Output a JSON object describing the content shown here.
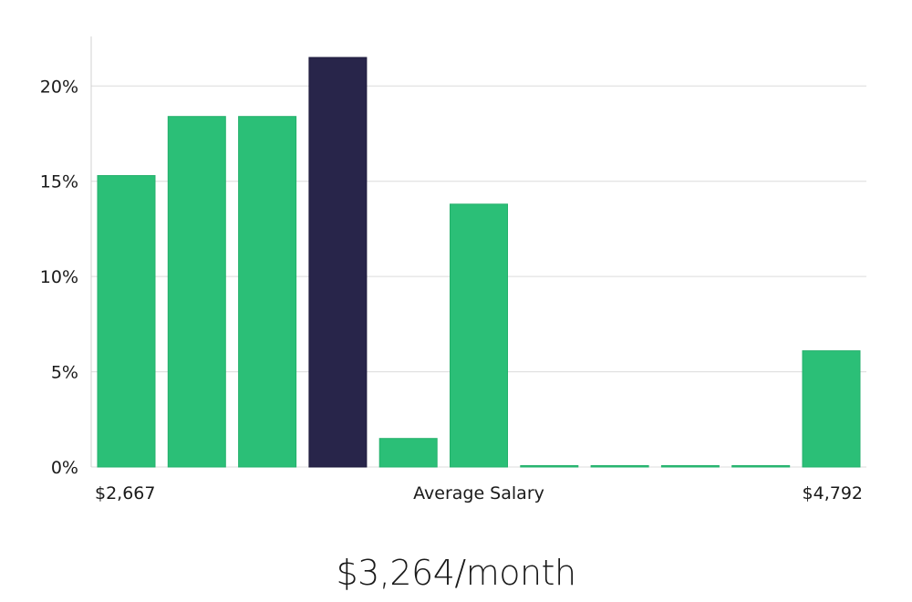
{
  "chart_data": {
    "type": "bar",
    "values": [
      15.3,
      18.4,
      18.4,
      21.5,
      1.5,
      13.8,
      0,
      0,
      0,
      0,
      6.1
    ],
    "highlight_index": 3,
    "yticks": [
      "0%",
      "5%",
      "10%",
      "15%",
      "20%"
    ],
    "ytick_values": [
      0,
      5,
      10,
      15,
      20
    ],
    "ylim": [
      0,
      22.6
    ],
    "xlabel_left": "$2,667",
    "xlabel_center": "Average Salary",
    "xlabel_right": "$4,792",
    "grid": true,
    "colors": {
      "bar": "#2bbf77",
      "highlight": "#28254a",
      "grid": "#dcdcdc",
      "axis": "#d0d0d0"
    }
  },
  "summary": {
    "salary": "$3,264/month"
  }
}
